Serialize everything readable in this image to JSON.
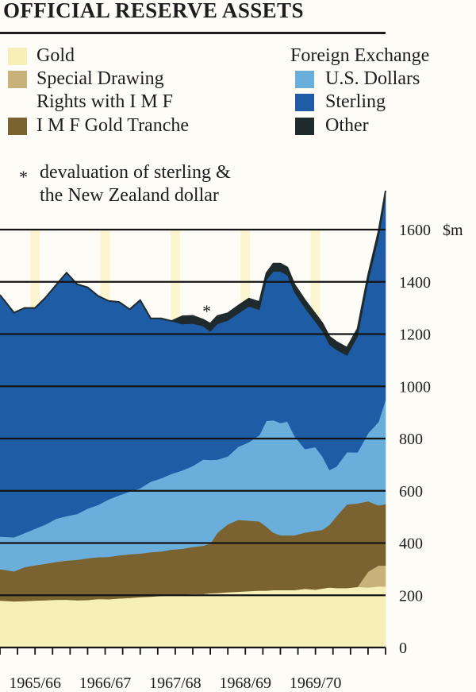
{
  "chart_data": {
    "type": "area",
    "title": "OFFICIAL RESERVE ASSETS",
    "unit": "$m",
    "ylim": [
      0,
      1600
    ],
    "y_ticks": [
      0,
      200,
      400,
      600,
      800,
      1000,
      1200,
      1400,
      1600
    ],
    "y_tick_labels": [
      "0",
      "200",
      "400",
      "600",
      "800",
      "1000",
      "1200",
      "1400",
      "1600"
    ],
    "x_range": [
      1965.0,
      1970.5
    ],
    "year_labels": [
      "1965/66",
      "1966/67",
      "1967/68",
      "1968/69",
      "1969/70"
    ],
    "grid": true,
    "legend_header": "Foreign Exchange",
    "legend": {
      "gold": "Gold",
      "sdr_1": "Special Drawing",
      "sdr_2": "Rights with I M F",
      "tranche": "I M F Gold Tranche",
      "usd": "U.S. Dollars",
      "sterling": "Sterling",
      "other": "Other"
    },
    "annotation_line_1": "devaluation of sterling &",
    "annotation_line_2": "the New Zealand dollar",
    "annotation_marker": "*",
    "annotation_x": 1967.95,
    "x": [
      1965.0,
      1965.2,
      1965.35,
      1965.5,
      1965.65,
      1965.8,
      1965.95,
      1966.1,
      1966.25,
      1966.4,
      1966.55,
      1966.7,
      1966.85,
      1967.0,
      1967.15,
      1967.3,
      1967.45,
      1967.6,
      1967.75,
      1967.9,
      1968.0,
      1968.1,
      1968.25,
      1968.4,
      1968.55,
      1968.7,
      1968.8,
      1968.9,
      1969.0,
      1969.1,
      1969.2,
      1969.35,
      1969.5,
      1969.6,
      1969.7,
      1969.8,
      1969.95,
      1970.1,
      1970.25,
      1970.4,
      1970.5
    ],
    "series": [
      {
        "key": "gold",
        "color": "#f6efb8",
        "values": [
          180,
          177,
          178,
          180,
          181,
          183,
          183,
          181,
          182,
          186,
          185,
          188,
          190,
          193,
          195,
          198,
          200,
          203,
          205,
          205,
          208,
          209,
          212,
          214,
          216,
          218,
          218,
          220,
          220,
          220,
          220,
          225,
          222,
          226,
          230,
          228,
          228,
          232,
          230,
          234,
          234
        ]
      },
      {
        "key": "sdr",
        "color": "#c8b27a",
        "values": [
          0,
          0,
          0,
          0,
          0,
          0,
          0,
          0,
          0,
          0,
          0,
          0,
          0,
          0,
          0,
          0,
          0,
          0,
          0,
          0,
          0,
          0,
          0,
          0,
          0,
          0,
          0,
          0,
          0,
          0,
          0,
          0,
          0,
          0,
          0,
          0,
          0,
          0,
          60,
          80,
          80
        ]
      },
      {
        "key": "tranche",
        "color": "#7a6330",
        "values": [
          120,
          115,
          130,
          135,
          140,
          145,
          150,
          155,
          160,
          160,
          162,
          165,
          167,
          167,
          170,
          170,
          175,
          175,
          180,
          185,
          190,
          230,
          260,
          275,
          270,
          265,
          245,
          220,
          210,
          210,
          210,
          215,
          225,
          225,
          240,
          275,
          320,
          320,
          270,
          230,
          235
        ]
      },
      {
        "key": "usd",
        "color": "#6aaedc",
        "values": [
          125,
          130,
          130,
          140,
          150,
          165,
          170,
          175,
          190,
          200,
          220,
          230,
          240,
          250,
          270,
          280,
          290,
          300,
          310,
          330,
          320,
          280,
          260,
          280,
          300,
          330,
          405,
          430,
          430,
          435,
          380,
          320,
          320,
          280,
          210,
          190,
          200,
          195,
          260,
          320,
          400
        ]
      },
      {
        "key": "sterling",
        "color": "#1f5ca6",
        "values": [
          925,
          860,
          862,
          845,
          869,
          895,
          932,
          880,
          847,
          800,
          760,
          740,
          698,
          720,
          625,
          612,
          585,
          560,
          545,
          510,
          492,
          520,
          520,
          510,
          520,
          480,
          540,
          570,
          580,
          560,
          550,
          540,
          480,
          480,
          480,
          447,
          370,
          443,
          580,
          705,
          775
        ]
      },
      {
        "key": "other",
        "color": "#1e2a2c",
        "values": [
          0,
          0,
          0,
          0,
          0,
          0,
          0,
          0,
          0,
          0,
          0,
          0,
          0,
          0,
          0,
          0,
          0,
          30,
          30,
          25,
          30,
          30,
          28,
          30,
          30,
          30,
          25,
          30,
          30,
          30,
          30,
          30,
          30,
          30,
          30,
          30,
          30,
          30,
          25,
          25,
          25
        ]
      }
    ]
  }
}
